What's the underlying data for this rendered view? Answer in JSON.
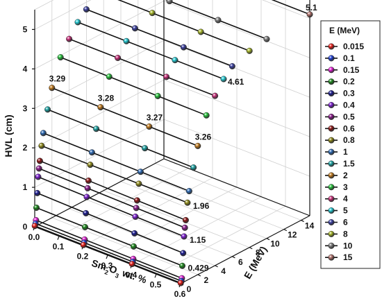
{
  "chart_data": {
    "type": "scatter",
    "subtype": "3d-scatter-with-lines",
    "xlabel": "Sm2O3 wt. %",
    "ylabel": "E (MeV)",
    "zlabel": "HVL (cm)",
    "x_ticks": [
      "0.0",
      "0.1",
      "0.2",
      "0.3",
      "0.4",
      "0.5",
      "0.6"
    ],
    "y_ticks": [
      "0",
      "2",
      "4",
      "6",
      "8",
      "10",
      "12",
      "14"
    ],
    "z_ticks": [
      "0",
      "1",
      "2",
      "3",
      "4",
      "5"
    ],
    "xlim": [
      0,
      0.6
    ],
    "ylim": [
      0,
      15
    ],
    "zlim": [
      0,
      5.5
    ],
    "grid": true,
    "legend_title": "E (MeV)",
    "legend_placement": "right",
    "sm2o3_wt": [
      0,
      0.2,
      0.4,
      0.6
    ],
    "series": [
      {
        "name": "0.015",
        "color": "#e8201c",
        "energy": 0.015,
        "hvl": [
          0.02,
          0.018,
          0.016,
          0.015
        ]
      },
      {
        "name": "0.1",
        "color": "#1f3fd6",
        "energy": 0.1,
        "hvl": [
          0.07,
          0.065,
          0.06,
          0.055
        ]
      },
      {
        "name": "0.15",
        "color": "#e61fd8",
        "energy": 0.15,
        "hvl": [
          0.15,
          0.14,
          0.13,
          0.12
        ]
      },
      {
        "name": "0.2",
        "color": "#1e8a1e",
        "energy": 0.2,
        "hvl": [
          0.46,
          0.45,
          0.44,
          0.429
        ]
      },
      {
        "name": "0.3",
        "color": "#1a1a8f",
        "energy": 0.3,
        "hvl": [
          0.82,
          0.79,
          0.76,
          0.74
        ]
      },
      {
        "name": "0.4",
        "color": "#7d1fd1",
        "energy": 0.4,
        "hvl": [
          1.22,
          1.19,
          1.17,
          1.15
        ]
      },
      {
        "name": "0.5",
        "color": "#8a1a8a",
        "energy": 0.5,
        "hvl": [
          1.42,
          1.4,
          1.38,
          1.36
        ]
      },
      {
        "name": "0.6",
        "color": "#8c1515",
        "energy": 0.6,
        "hvl": [
          1.6,
          1.58,
          1.56,
          1.54
        ]
      },
      {
        "name": "0.8",
        "color": "#8f8a1a",
        "energy": 0.8,
        "hvl": [
          1.96,
          1.96,
          1.96,
          1.96
        ]
      },
      {
        "name": "1",
        "color": "#2e6bb5",
        "energy": 1,
        "hvl": [
          2.26,
          2.25,
          2.24,
          2.23
        ]
      },
      {
        "name": "1.5",
        "color": "#1ea5a5",
        "energy": 1.5,
        "hvl": [
          2.8,
          2.79,
          2.78,
          2.77
        ]
      },
      {
        "name": "2",
        "color": "#c07a1e",
        "energy": 2,
        "hvl": [
          3.29,
          3.28,
          3.27,
          3.26
        ]
      },
      {
        "name": "3",
        "color": "#27c23c",
        "energy": 3,
        "hvl": [
          3.95,
          3.94,
          3.93,
          3.92
        ]
      },
      {
        "name": "4",
        "color": "#c8307a",
        "energy": 4,
        "hvl": [
          4.3,
          4.3,
          4.3,
          4.3
        ]
      },
      {
        "name": "5",
        "color": "#22c9d2",
        "energy": 5,
        "hvl": [
          4.61,
          4.61,
          4.61,
          4.61
        ]
      },
      {
        "name": "6",
        "color": "#3b40a0",
        "energy": 6,
        "hvl": [
          4.82,
          4.82,
          4.82,
          4.82
        ]
      },
      {
        "name": "8",
        "color": "#a8b82a",
        "energy": 8,
        "hvl": [
          4.98,
          4.98,
          4.98,
          4.98
        ]
      },
      {
        "name": "10",
        "color": "#7f7f7f",
        "energy": 10,
        "hvl": [
          5.05,
          5.05,
          5.05,
          5.05
        ]
      },
      {
        "name": "15",
        "color": "#b0706a",
        "energy": 15,
        "hvl": [
          5.1,
          5.1,
          5.1,
          5.1
        ]
      }
    ],
    "annotations": [
      "5.1",
      "4.61",
      "3.29",
      "3.28",
      "3.27",
      "3.26",
      "1.96",
      "1.15",
      "0.429"
    ]
  }
}
